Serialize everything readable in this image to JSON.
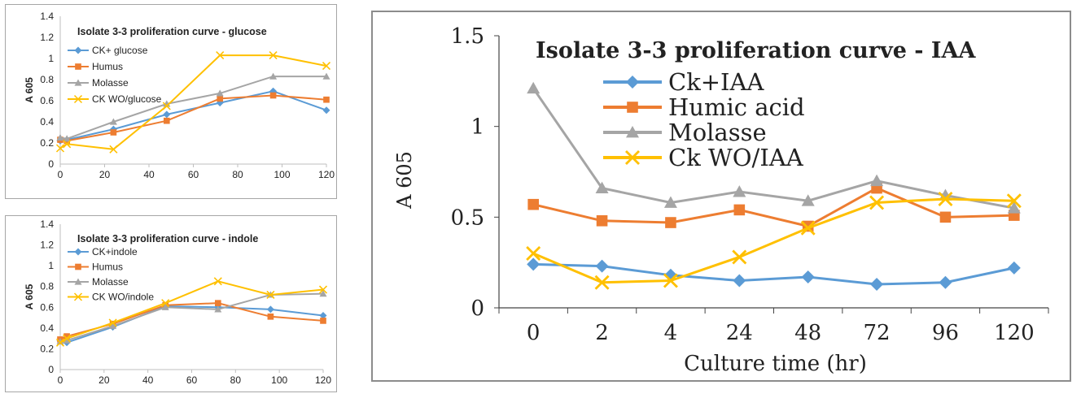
{
  "chart_data": [
    {
      "type": "line",
      "title": "Isolate 3-3  proliferation curve - glucose",
      "xlabel": "",
      "ylabel": "A 605",
      "x": [
        0,
        3,
        24,
        48,
        72,
        96,
        120
      ],
      "xticks": [
        0,
        20,
        40,
        60,
        80,
        100,
        120
      ],
      "xlim": [
        0,
        120
      ],
      "yticks": [
        0,
        0.2,
        0.4,
        0.6,
        0.8,
        1,
        1.2,
        1.4
      ],
      "ylim": [
        0,
        1.4
      ],
      "legend": "top-left",
      "series": [
        {
          "name": "CK+ glucose",
          "color": "#5b9bd5",
          "marker": "diamond",
          "values": [
            0.22,
            0.23,
            0.33,
            0.47,
            0.58,
            0.69,
            0.51
          ]
        },
        {
          "name": "Humus",
          "color": "#ed7d31",
          "marker": "square",
          "values": [
            0.23,
            0.22,
            0.3,
            0.41,
            0.62,
            0.65,
            0.61
          ]
        },
        {
          "name": "Molasse",
          "color": "#a5a5a5",
          "marker": "triangle",
          "values": [
            0.25,
            0.24,
            0.4,
            0.57,
            0.67,
            0.83,
            0.83
          ]
        },
        {
          "name": "CK WO/glucose",
          "color": "#ffc000",
          "marker": "x",
          "values": [
            0.15,
            0.19,
            0.14,
            0.55,
            1.03,
            1.03,
            0.93
          ]
        }
      ]
    },
    {
      "type": "line",
      "title": "Isolate 3-3 proliferation curve - indole",
      "xlabel": "",
      "ylabel": "A 605",
      "x": [
        0,
        3,
        24,
        48,
        72,
        96,
        120
      ],
      "xticks": [
        0,
        20,
        40,
        60,
        80,
        100,
        120
      ],
      "xlim": [
        0,
        120
      ],
      "yticks": [
        0,
        0.2,
        0.4,
        0.6,
        0.8,
        1,
        1.2,
        1.4
      ],
      "ylim": [
        0,
        1.4
      ],
      "legend": "top-left",
      "series": [
        {
          "name": "CK+indole",
          "color": "#5b9bd5",
          "marker": "diamond",
          "values": [
            0.28,
            0.26,
            0.41,
            0.61,
            0.6,
            0.58,
            0.52
          ]
        },
        {
          "name": "Humus",
          "color": "#ed7d31",
          "marker": "square",
          "values": [
            0.29,
            0.32,
            0.44,
            0.62,
            0.64,
            0.51,
            0.47
          ]
        },
        {
          "name": "Molasse",
          "color": "#a5a5a5",
          "marker": "triangle",
          "values": [
            0.27,
            0.28,
            0.42,
            0.6,
            0.58,
            0.72,
            0.73
          ]
        },
        {
          "name": "CK WO/indole",
          "color": "#ffc000",
          "marker": "x",
          "values": [
            0.26,
            0.3,
            0.45,
            0.64,
            0.85,
            0.72,
            0.77
          ]
        }
      ]
    },
    {
      "type": "line",
      "title": "Isolate 3-3 proliferation curve - IAA",
      "xlabel": "Culture time (hr)",
      "ylabel": "A 605",
      "categories": [
        "0",
        "2",
        "4",
        "24",
        "48",
        "72",
        "96",
        "120"
      ],
      "yticks": [
        "0",
        "0.5",
        "1",
        "1.5"
      ],
      "ylim": [
        0,
        1.5
      ],
      "legend": "top-left",
      "series": [
        {
          "name": "Ck+IAA",
          "color": "#5b9bd5",
          "marker": "diamond",
          "values": [
            0.24,
            0.23,
            0.18,
            0.15,
            0.17,
            0.13,
            0.14,
            0.22
          ]
        },
        {
          "name": "Humic acid",
          "color": "#ed7d31",
          "marker": "square",
          "values": [
            0.57,
            0.48,
            0.47,
            0.54,
            0.45,
            0.66,
            0.5,
            0.51
          ]
        },
        {
          "name": "Molasse",
          "color": "#a5a5a5",
          "marker": "triangle",
          "values": [
            1.21,
            0.66,
            0.58,
            0.64,
            0.59,
            0.7,
            0.62,
            0.55
          ]
        },
        {
          "name": "Ck WO/IAA",
          "color": "#ffc000",
          "marker": "x",
          "values": [
            0.3,
            0.14,
            0.15,
            0.28,
            0.44,
            0.58,
            0.6,
            0.59
          ]
        }
      ]
    }
  ]
}
